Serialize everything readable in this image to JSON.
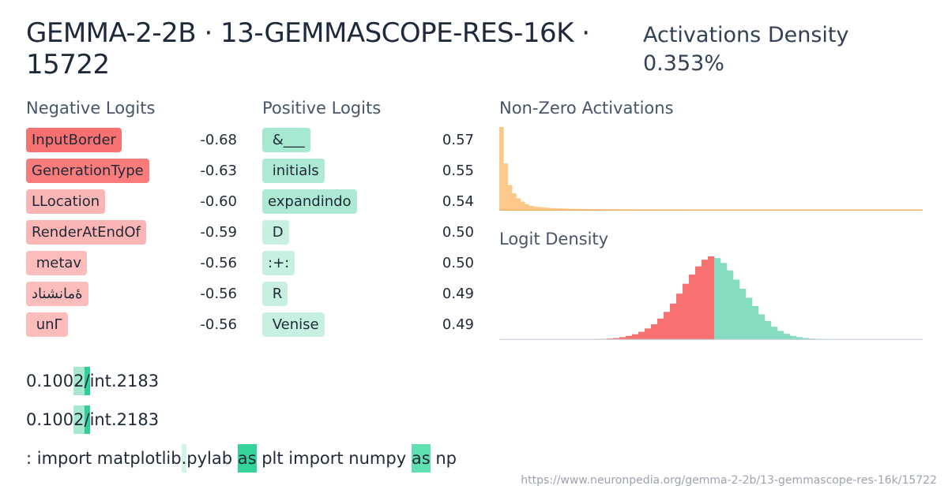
{
  "header": {
    "title": "GEMMA-2-2B · 13-GEMMASCOPE-RES-16K · 15722",
    "density_label": "Activations Density",
    "density_value": "0.353%"
  },
  "negative_logits": {
    "heading": "Negative Logits",
    "items": [
      {
        "token": "InputBorder",
        "value": "-0.68",
        "color": "#f87171"
      },
      {
        "token": "GenerationType",
        "value": "-0.63",
        "color": "#f87c7c"
      },
      {
        "token": "LLocation",
        "value": "-0.60",
        "color": "#fbb5b5"
      },
      {
        "token": "RenderAtEndOf",
        "value": "-0.59",
        "color": "#fbb5b5"
      },
      {
        "token": " metav",
        "value": "-0.56",
        "color": "#fcbcbc"
      },
      {
        "token": "ۀمانشناد",
        "value": "-0.56",
        "color": "#fcbcbc"
      },
      {
        "token": " unΓ",
        "value": "-0.56",
        "color": "#fcbcbc"
      }
    ]
  },
  "positive_logits": {
    "heading": "Positive Logits",
    "items": [
      {
        "token": " &___",
        "value": "0.57",
        "color": "#a7e8d0"
      },
      {
        "token": " initials",
        "value": "0.55",
        "color": "#ade9d3"
      },
      {
        "token": "expandindo",
        "value": "0.54",
        "color": "#ade9d3"
      },
      {
        "token": " D",
        "value": "0.50",
        "color": "#c7f0e1"
      },
      {
        "token": ":+:",
        "value": "0.50",
        "color": "#c7f0e1"
      },
      {
        "token": " R",
        "value": "0.49",
        "color": "#c7f0e1"
      },
      {
        "token": " Venise",
        "value": "0.49",
        "color": "#c7f0e1"
      }
    ]
  },
  "nonzero": {
    "heading": "Non-Zero Activations",
    "bar_color": "#fcc98a",
    "values": [
      100,
      56,
      30,
      20,
      14,
      10,
      7,
      5,
      4,
      3.5,
      3,
      2.5,
      2,
      2,
      1.8,
      1.6,
      1.4,
      1.3,
      1.2,
      1.1,
      1,
      1,
      0.9,
      0.9,
      0.8,
      0.8,
      0.7,
      0.7,
      0.7,
      0.6,
      0.6,
      0.6,
      0.5,
      0.5,
      0.5,
      0.5,
      0.5,
      0.4,
      0.4,
      0.4,
      0.4,
      0.4,
      0.4,
      0.4,
      0.3,
      0.3,
      0.3,
      0.3,
      0.3,
      0.3,
      0.3,
      0.3,
      0.3,
      0.3,
      0.3,
      0.3,
      0.3,
      0.3,
      0.3,
      0.3,
      0.3,
      0.3,
      0.3,
      0.3,
      0.3,
      0.3,
      0.3,
      0.3,
      0.3,
      0.3,
      0.3,
      0.3,
      0.3,
      0.3,
      0.3,
      0.3,
      0.3,
      0.3,
      0.3,
      0.3,
      0.3,
      0.3,
      0.3,
      0.3,
      0.3,
      0.3,
      0.3,
      0.3,
      0.3,
      0.3,
      0.3,
      0.3,
      0.3,
      0.3,
      0.3,
      0.3,
      0.3,
      0.3,
      0.3,
      0.3
    ]
  },
  "logit_density": {
    "heading": "Logit Density",
    "negative_color": "#f87171",
    "positive_color": "#86dcc0",
    "negative_values": [
      0,
      0,
      0,
      0,
      0,
      0,
      0,
      0,
      0,
      0,
      0,
      0,
      0,
      0,
      0,
      0.2,
      0.4,
      0.8,
      1.5,
      2.5,
      4,
      6,
      9,
      13,
      18,
      25,
      33,
      43,
      55,
      67,
      78,
      88,
      96,
      100
    ],
    "positive_values": [
      98,
      92,
      83,
      72,
      61,
      50,
      40,
      30,
      22,
      15,
      10,
      6.5,
      4,
      2.5,
      1.5,
      0.8,
      0.4,
      0.2,
      0,
      0,
      0,
      0,
      0,
      0,
      0,
      0,
      0,
      0,
      0,
      0,
      0,
      0,
      0
    ]
  },
  "examples": [
    {
      "tokens": [
        {
          "t": "0.100"
        },
        {
          "t": "2",
          "bg": "#a7e8d0"
        },
        {
          "t": "/",
          "bg": "#2fcf95"
        },
        {
          "t": "int.2183"
        }
      ]
    },
    {
      "tokens": [
        {
          "t": "0.100"
        },
        {
          "t": "2",
          "bg": "#a7e8d0"
        },
        {
          "t": "/",
          "bg": "#2fcf95"
        },
        {
          "t": "int.2183"
        }
      ]
    },
    {
      "tokens": [
        {
          "t": ": import matplotlib"
        },
        {
          "t": ".",
          "bg": "#d2f3e6"
        },
        {
          "t": "pylab "
        },
        {
          "t": "as",
          "bg": "#34d399"
        },
        {
          "t": " plt import numpy "
        },
        {
          "t": "as",
          "bg": "#5ee0b0"
        },
        {
          "t": " np"
        }
      ]
    }
  ],
  "url": "https://www.neuronpedia.org/gemma-2-2b/13-gemmascope-res-16k/15722"
}
